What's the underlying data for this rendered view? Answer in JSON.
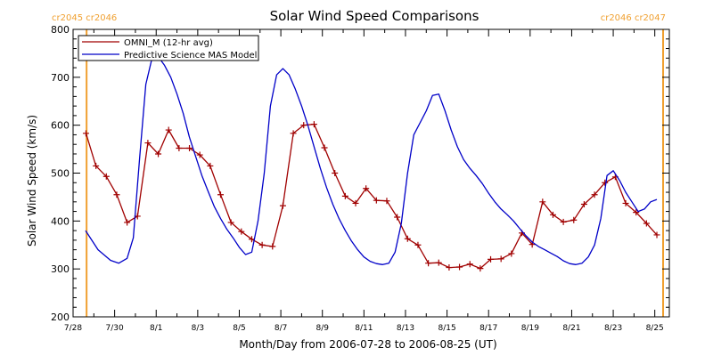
{
  "chart_data": {
    "type": "line",
    "title": "Solar Wind Speed Comparisons",
    "xlabel": "Month/Day from 2006-07-28 to 2006-08-25 (UT)",
    "ylabel": "Solar Wind Speed (km/s)",
    "xlim": [
      0,
      28.7
    ],
    "ylim": [
      200,
      800
    ],
    "yticks": [
      200,
      300,
      400,
      500,
      600,
      700,
      800
    ],
    "xticks": [
      {
        "x": 0,
        "label": "7/28"
      },
      {
        "x": 2,
        "label": "7/30"
      },
      {
        "x": 4,
        "label": "8/1"
      },
      {
        "x": 6,
        "label": "8/3"
      },
      {
        "x": 8,
        "label": "8/5"
      },
      {
        "x": 10,
        "label": "8/7"
      },
      {
        "x": 12,
        "label": "8/9"
      },
      {
        "x": 14,
        "label": "8/11"
      },
      {
        "x": 16,
        "label": "8/13"
      },
      {
        "x": 18,
        "label": "8/15"
      },
      {
        "x": 20,
        "label": "8/17"
      },
      {
        "x": 22,
        "label": "8/19"
      },
      {
        "x": 24,
        "label": "8/21"
      },
      {
        "x": 26,
        "label": "8/23"
      },
      {
        "x": 28,
        "label": "8/25"
      }
    ],
    "rotation_markers": [
      {
        "x": 0.65,
        "label": "cr2045 cr2046"
      },
      {
        "x": 28.4,
        "label": "cr2046 cr2047"
      }
    ],
    "legend": "top-left",
    "series": [
      {
        "name": "OMNI_M (12-hr avg)",
        "color": "#a00000",
        "marker": "plus",
        "x": [
          0.62,
          1.1,
          1.6,
          2.1,
          2.6,
          3.1,
          3.6,
          4.1,
          4.6,
          5.1,
          5.6,
          6.1,
          6.6,
          7.1,
          7.6,
          8.1,
          8.6,
          9.1,
          9.6,
          10.1,
          10.6,
          11.1,
          11.6,
          12.1,
          12.6,
          13.1,
          13.6,
          14.1,
          14.6,
          15.1,
          15.6,
          16.1,
          16.6,
          17.1,
          17.6,
          18.1,
          18.6,
          19.1,
          19.6,
          20.1,
          20.6,
          21.1,
          21.6,
          22.1,
          22.6,
          23.1,
          23.6,
          24.1,
          24.6,
          25.1,
          25.6,
          26.1,
          26.6,
          27.1,
          27.6,
          28.1
        ],
        "y": [
          583,
          515,
          493,
          455,
          397,
          410,
          563,
          540,
          590,
          552,
          552,
          538,
          515,
          455,
          397,
          378,
          362,
          350,
          347,
          432,
          583,
          600,
          602,
          553,
          500,
          452,
          437,
          468,
          443,
          442,
          408,
          363,
          350,
          312,
          313,
          303,
          304,
          310,
          301,
          320,
          321,
          332,
          375,
          351,
          440,
          413,
          398,
          402,
          435,
          455,
          480,
          492,
          437,
          418,
          395,
          371
        ]
      },
      {
        "name": "Predictive Science MAS Model",
        "color": "#0000c8",
        "marker": "none",
        "x": [
          0.6,
          1.2,
          1.8,
          2.2,
          2.6,
          2.9,
          3.2,
          3.5,
          3.8,
          4.1,
          4.4,
          4.7,
          5.0,
          5.3,
          5.6,
          5.9,
          6.2,
          6.5,
          6.8,
          7.1,
          7.4,
          7.7,
          8.0,
          8.3,
          8.6,
          8.9,
          9.2,
          9.5,
          9.8,
          10.1,
          10.4,
          10.7,
          11.0,
          11.3,
          11.6,
          11.9,
          12.2,
          12.5,
          12.8,
          13.1,
          13.4,
          13.7,
          14.0,
          14.3,
          14.6,
          14.9,
          15.2,
          15.5,
          15.8,
          16.1,
          16.4,
          16.7,
          17.0,
          17.3,
          17.6,
          17.9,
          18.2,
          18.5,
          18.8,
          19.1,
          19.4,
          19.7,
          20.0,
          20.3,
          20.6,
          20.9,
          21.2,
          21.5,
          21.8,
          22.1,
          22.4,
          22.7,
          23.0,
          23.3,
          23.6,
          23.9,
          24.2,
          24.5,
          24.8,
          25.1,
          25.4,
          25.7,
          26.0,
          26.3,
          26.6,
          26.9,
          27.2,
          27.5,
          27.8,
          28.1
        ],
        "y": [
          380,
          340,
          318,
          312,
          322,
          365,
          530,
          685,
          740,
          743,
          725,
          700,
          665,
          625,
          575,
          535,
          495,
          462,
          430,
          405,
          383,
          365,
          345,
          330,
          335,
          400,
          500,
          640,
          705,
          718,
          705,
          675,
          640,
          600,
          555,
          510,
          470,
          435,
          405,
          380,
          358,
          340,
          325,
          316,
          311,
          309,
          312,
          335,
          395,
          500,
          580,
          605,
          630,
          662,
          665,
          630,
          590,
          555,
          528,
          510,
          495,
          478,
          458,
          440,
          425,
          413,
          400,
          384,
          369,
          356,
          347,
          340,
          333,
          326,
          317,
          311,
          309,
          312,
          325,
          350,
          405,
          495,
          505,
          485,
          460,
          440,
          420,
          425,
          440,
          445
        ]
      }
    ]
  }
}
